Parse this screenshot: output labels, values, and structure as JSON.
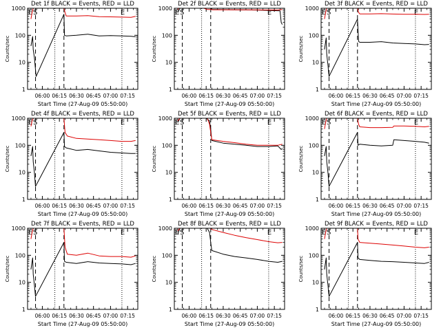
{
  "figure": {
    "ylabel": "Counts/sec",
    "xlabel": "Start Time (27-Aug-09 05:50:00)",
    "x_tick_labels": [
      "06:00",
      "06:15",
      "06:30",
      "06:45",
      "07:00",
      "07:15"
    ],
    "y_tick_labels": [
      "1",
      "10",
      "100",
      "1000"
    ],
    "markers": {
      "E": "E",
      "S": "S"
    },
    "colors": {
      "events": "#000000",
      "lld": "#dd0000"
    }
  },
  "chart_data": [
    {
      "type": "line",
      "title": "Det 1f BLACK = Events, RED = LLD",
      "x_unit": "minutes after 05:50:00",
      "xlim": [
        -3,
        94
      ],
      "ylim": [
        1,
        1000
      ],
      "yscale": "log",
      "grid": false,
      "dashed_lines": [
        4,
        29
      ],
      "dotted_lines": [
        21,
        80
      ],
      "series": [
        {
          "name": "Events",
          "color": "#000000",
          "x": [
            0,
            1.5,
            2,
            3,
            4.5,
            29,
            29.5,
            31,
            40,
            50,
            60,
            70,
            80,
            88,
            92
          ],
          "values": [
            40,
            90,
            30,
            15,
            3,
            600,
            100,
            95,
            100,
            110,
            95,
            98,
            95,
            92,
            88
          ]
        },
        {
          "name": "LLD",
          "color": "#dd0000",
          "x": [
            0,
            1,
            2,
            3,
            4.5,
            29,
            30,
            31,
            40,
            50,
            60,
            70,
            80,
            88,
            92
          ],
          "values": [
            400,
            700,
            1000,
            1000,
            1000,
            1000,
            700,
            520,
            520,
            530,
            490,
            480,
            470,
            460,
            500
          ]
        }
      ]
    },
    {
      "type": "line",
      "title": "Det 2f BLACK = Events, RED = LLD",
      "x_unit": "minutes after 05:50:00",
      "xlim": [
        -3,
        94
      ],
      "ylim": [
        1,
        1000
      ],
      "yscale": "log",
      "grid": false,
      "dashed_lines": [
        4,
        29
      ],
      "dotted_lines": [
        21,
        80
      ],
      "series": [
        {
          "name": "Events",
          "color": "#000000",
          "x": [
            0,
            2,
            4,
            6,
            12,
            20,
            24,
            29,
            30,
            50,
            70,
            90,
            91,
            92
          ],
          "values": [
            700,
            1000,
            1000,
            1000,
            1000,
            1000,
            1000,
            1000,
            900,
            880,
            860,
            800,
            300,
            250
          ]
        },
        {
          "name": "LLD",
          "color": "#dd0000",
          "x": [
            0,
            1,
            2,
            4,
            12,
            20,
            23,
            26,
            29,
            31,
            50,
            70,
            88,
            92
          ],
          "values": [
            900,
            1000,
            1000,
            1000,
            1000,
            1000,
            1000,
            900,
            900,
            880,
            880,
            870,
            860,
            900
          ]
        }
      ]
    },
    {
      "type": "line",
      "title": "Det 3f BLACK = Events, RED = LLD",
      "x_unit": "minutes after 05:50:00",
      "xlim": [
        -3,
        94
      ],
      "ylim": [
        1,
        1000
      ],
      "yscale": "log",
      "grid": false,
      "dashed_lines": [
        4,
        29
      ],
      "dotted_lines": [
        21,
        80
      ],
      "series": [
        {
          "name": "Events",
          "color": "#000000",
          "x": [
            0,
            1.5,
            2,
            3,
            4,
            29,
            30,
            31,
            40,
            50,
            60,
            70,
            80,
            88,
            92
          ],
          "values": [
            30,
            80,
            20,
            8,
            3,
            400,
            60,
            55,
            55,
            58,
            52,
            50,
            48,
            45,
            46
          ]
        },
        {
          "name": "LLD",
          "color": "#dd0000",
          "x": [
            0,
            1,
            2,
            4,
            29,
            30,
            31,
            40,
            50,
            60,
            70,
            80,
            88,
            92
          ],
          "values": [
            400,
            700,
            1000,
            1000,
            1000,
            700,
            620,
            620,
            630,
            610,
            600,
            600,
            590,
            600
          ]
        }
      ]
    },
    {
      "type": "line",
      "title": "Det 4f BLACK = Events, RED = LLD",
      "x_unit": "minutes after 05:50:00",
      "xlim": [
        -3,
        94
      ],
      "ylim": [
        1,
        1000
      ],
      "yscale": "log",
      "grid": false,
      "dashed_lines": [
        4,
        29
      ],
      "dotted_lines": [
        21,
        80
      ],
      "series": [
        {
          "name": "Events",
          "color": "#000000",
          "x": [
            0,
            1.5,
            2,
            3,
            4,
            29,
            29.5,
            31,
            40,
            50,
            60,
            70,
            80,
            88,
            92
          ],
          "values": [
            40,
            90,
            25,
            10,
            3,
            300,
            90,
            80,
            65,
            70,
            62,
            55,
            52,
            50,
            50
          ]
        },
        {
          "name": "LLD",
          "color": "#dd0000",
          "x": [
            0,
            1,
            2,
            4,
            28,
            29,
            30,
            32,
            40,
            50,
            60,
            70,
            80,
            88,
            92
          ],
          "values": [
            500,
            800,
            1000,
            1000,
            1000,
            1000,
            300,
            220,
            180,
            170,
            160,
            150,
            140,
            140,
            150
          ]
        }
      ]
    },
    {
      "type": "line",
      "title": "Det 5f BLACK = Events, RED = LLD",
      "x_unit": "minutes after 05:50:00",
      "xlim": [
        -3,
        94
      ],
      "ylim": [
        1,
        1000
      ],
      "yscale": "log",
      "grid": false,
      "dashed_lines": [
        4,
        29
      ],
      "dotted_lines": [
        21,
        80
      ],
      "series": [
        {
          "name": "Events",
          "color": "#000000",
          "x": [
            0,
            2,
            5,
            10,
            20,
            25,
            28,
            29,
            30,
            40,
            50,
            60,
            70,
            80,
            88,
            91,
            92
          ],
          "values": [
            700,
            1000,
            1000,
            1000,
            1000,
            1000,
            800,
            400,
            150,
            120,
            110,
            100,
            90,
            90,
            95,
            70,
            75
          ]
        },
        {
          "name": "LLD",
          "color": "#dd0000",
          "x": [
            0,
            2,
            5,
            20,
            26,
            28,
            29,
            30,
            40,
            50,
            60,
            70,
            80,
            88,
            92
          ],
          "values": [
            800,
            1000,
            1000,
            1000,
            1000,
            600,
            300,
            160,
            140,
            125,
            110,
            100,
            100,
            100,
            110
          ]
        }
      ]
    },
    {
      "type": "line",
      "title": "Det 6f BLACK = Events, RED = LLD",
      "x_unit": "minutes after 05:50:00",
      "xlim": [
        -3,
        94
      ],
      "ylim": [
        1,
        1000
      ],
      "yscale": "log",
      "grid": false,
      "dashed_lines": [
        4,
        29
      ],
      "dotted_lines": [
        21,
        80
      ],
      "series": [
        {
          "name": "Events",
          "color": "#000000",
          "x": [
            0,
            1.5,
            2,
            3,
            4,
            29,
            29.5,
            31,
            40,
            50,
            60,
            61,
            70,
            80,
            88,
            92
          ],
          "values": [
            40,
            90,
            25,
            10,
            3,
            300,
            100,
            110,
            100,
            95,
            100,
            160,
            150,
            140,
            130,
            120
          ]
        },
        {
          "name": "LLD",
          "color": "#dd0000",
          "x": [
            0,
            1,
            2,
            4,
            29,
            30,
            31,
            40,
            50,
            60,
            61,
            70,
            80,
            88,
            92
          ],
          "values": [
            400,
            700,
            1000,
            1000,
            1000,
            600,
            480,
            450,
            450,
            460,
            520,
            520,
            500,
            480,
            500
          ]
        }
      ]
    },
    {
      "type": "line",
      "title": "Det 7f BLACK = Events, RED = LLD",
      "x_unit": "minutes after 05:50:00",
      "xlim": [
        -3,
        94
      ],
      "ylim": [
        1,
        1000
      ],
      "yscale": "log",
      "grid": false,
      "dashed_lines": [
        4,
        29
      ],
      "dotted_lines": [
        21,
        80
      ],
      "series": [
        {
          "name": "Events",
          "color": "#000000",
          "x": [
            0,
            1.5,
            2,
            3,
            4,
            29,
            29.5,
            31,
            40,
            50,
            60,
            70,
            80,
            88,
            92
          ],
          "values": [
            30,
            80,
            20,
            8,
            3,
            300,
            60,
            55,
            50,
            58,
            52,
            50,
            48,
            45,
            50
          ]
        },
        {
          "name": "LLD",
          "color": "#dd0000",
          "x": [
            0,
            1,
            2,
            4,
            28,
            29,
            30,
            32,
            40,
            50,
            60,
            70,
            80,
            88,
            92
          ],
          "values": [
            400,
            700,
            1000,
            1000,
            1000,
            1000,
            200,
            110,
            100,
            120,
            95,
            90,
            90,
            85,
            95
          ]
        }
      ]
    },
    {
      "type": "line",
      "title": "Det 8f BLACK = Events, RED = LLD",
      "x_unit": "minutes after 05:50:00",
      "xlim": [
        -3,
        94
      ],
      "ylim": [
        1,
        1000
      ],
      "yscale": "log",
      "grid": false,
      "dashed_lines": [
        4,
        29
      ],
      "dotted_lines": [
        21,
        80
      ],
      "series": [
        {
          "name": "Events",
          "color": "#000000",
          "x": [
            0,
            2,
            5,
            15,
            26,
            28,
            29,
            30,
            40,
            50,
            60,
            70,
            80,
            88,
            92
          ],
          "values": [
            600,
            1000,
            1000,
            1000,
            1000,
            700,
            300,
            150,
            110,
            90,
            80,
            70,
            60,
            55,
            60
          ]
        },
        {
          "name": "LLD",
          "color": "#dd0000",
          "x": [
            0,
            2,
            5,
            20,
            28,
            29,
            30,
            40,
            50,
            60,
            70,
            80,
            88,
            92
          ],
          "values": [
            800,
            1000,
            1000,
            1000,
            1000,
            1000,
            900,
            700,
            550,
            450,
            380,
            320,
            290,
            300
          ]
        }
      ]
    },
    {
      "type": "line",
      "title": "Det 9f BLACK = Events, RED = LLD",
      "x_unit": "minutes after 05:50:00",
      "xlim": [
        -3,
        94
      ],
      "ylim": [
        1,
        1000
      ],
      "yscale": "log",
      "grid": false,
      "dashed_lines": [
        4,
        29
      ],
      "dotted_lines": [
        21,
        80
      ],
      "series": [
        {
          "name": "Events",
          "color": "#000000",
          "x": [
            0,
            1.5,
            2,
            3,
            4,
            29,
            29.5,
            31,
            40,
            50,
            60,
            70,
            80,
            88,
            92
          ],
          "values": [
            30,
            80,
            20,
            8,
            3,
            300,
            80,
            70,
            65,
            60,
            58,
            55,
            52,
            50,
            55
          ]
        },
        {
          "name": "LLD",
          "color": "#dd0000",
          "x": [
            0,
            1,
            2,
            4,
            29,
            29.5,
            31,
            40,
            50,
            60,
            70,
            80,
            88,
            92
          ],
          "values": [
            400,
            700,
            1000,
            1000,
            1000,
            400,
            300,
            280,
            260,
            240,
            220,
            200,
            190,
            200
          ]
        }
      ]
    }
  ]
}
